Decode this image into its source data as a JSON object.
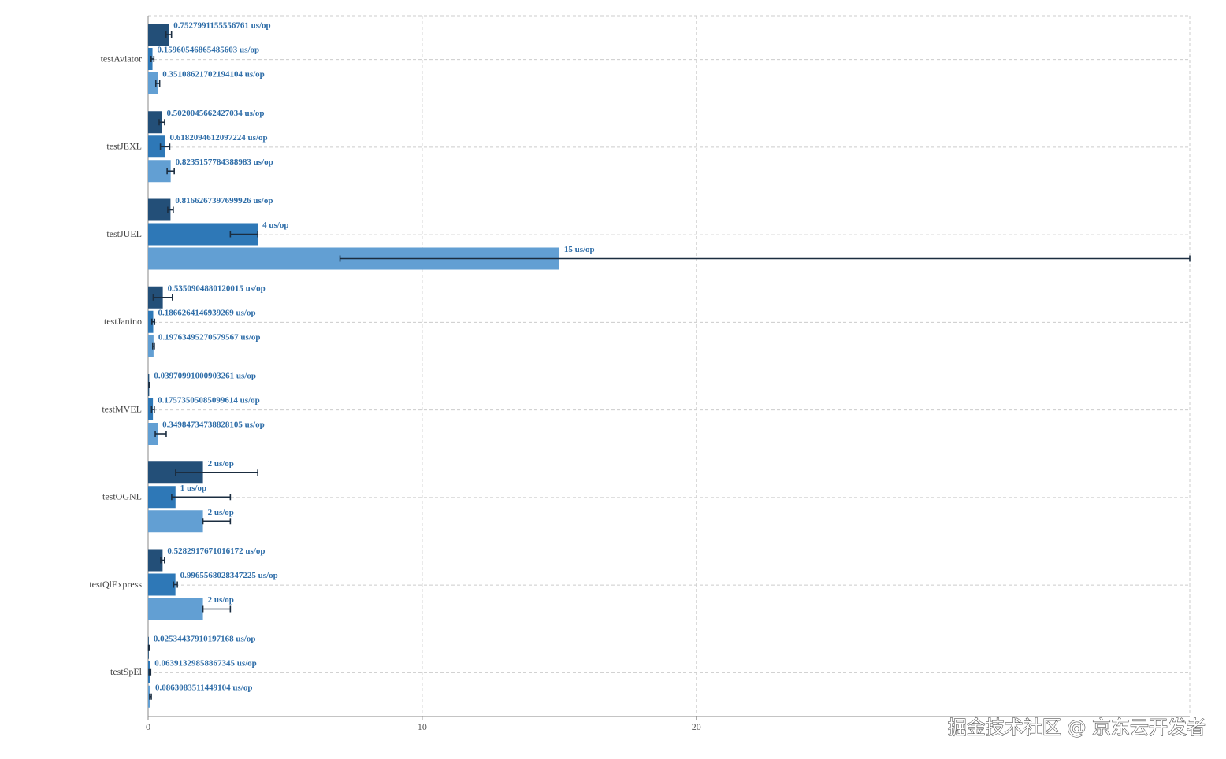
{
  "chart_data": {
    "type": "bar",
    "orientation": "horizontal",
    "categories": [
      "testAviator",
      "testJEXL",
      "testJUEL",
      "testJanino",
      "testMVEL",
      "testOGNL",
      "testQlExpress",
      "testSpEl"
    ],
    "series": [
      {
        "color": "#234f78",
        "values": [
          0.7527991155556761,
          0.5020045662427034,
          0.8166267397699926,
          0.5350904880120015,
          0.03970991000903261,
          2,
          0.5282917671016172,
          0.02534437910197168
        ],
        "value_labels": [
          "0.7527991155556761 us/op",
          "0.5020045662427034 us/op",
          "0.8166267397699926 us/op",
          "0.5350904880120015 us/op",
          "0.03970991000903261 us/op",
          "2 us/op",
          "0.5282917671016172 us/op",
          "0.02534437910197168 us/op"
        ],
        "errors": [
          [
            0.1,
            0.1
          ],
          [
            0.1,
            0.1
          ],
          [
            0.1,
            0.1
          ],
          [
            0.35,
            0.35
          ],
          [
            0.01,
            0.01
          ],
          [
            1,
            2
          ],
          [
            0.07,
            0.07
          ],
          [
            0.01,
            0.01
          ]
        ]
      },
      {
        "color": "#2e78b7",
        "values": [
          0.15960546865485603,
          0.6182094612097224,
          4,
          0.1866264146939269,
          0.17573505085099614,
          1,
          0.9965568028347225,
          0.06391329858867345
        ],
        "value_labels": [
          "0.15960546865485603 us/op",
          "0.6182094612097224 us/op",
          "4 us/op",
          "0.1866264146939269 us/op",
          "0.17573505085099614 us/op",
          "1 us/op",
          "0.9965568028347225 us/op",
          "0.06391329858867345 us/op"
        ],
        "errors": [
          [
            0.05,
            0.05
          ],
          [
            0.17,
            0.17
          ],
          [
            1,
            0
          ],
          [
            0.05,
            0.05
          ],
          [
            0.05,
            0.05
          ],
          [
            0.14,
            2
          ],
          [
            0.07,
            0.07
          ],
          [
            0.03,
            0.03
          ]
        ]
      },
      {
        "color": "#629fd3",
        "values": [
          0.35108621702194104,
          0.8235157784388983,
          15,
          0.19763495270579567,
          0.34984734738828105,
          2,
          2,
          0.0863083511449104
        ],
        "value_labels": [
          "0.35108621702194104 us/op",
          "0.8235157784388983 us/op",
          "15 us/op",
          "0.19763495270579567 us/op",
          "0.34984734738828105 us/op",
          "2 us/op",
          "2 us/op",
          "0.0863083511449104 us/op"
        ],
        "errors": [
          [
            0.07,
            0.07
          ],
          [
            0.13,
            0.13
          ],
          [
            8,
            23
          ],
          [
            0.03,
            0.03
          ],
          [
            0.09,
            0.31
          ],
          [
            0,
            1
          ],
          [
            0,
            1
          ],
          [
            0.03,
            0.03
          ]
        ]
      }
    ],
    "xlim": [
      0,
      38
    ],
    "xticks": [
      0,
      10,
      20
    ],
    "grid": true
  },
  "watermark": "掘金技术社区 @ 京东云开发者"
}
